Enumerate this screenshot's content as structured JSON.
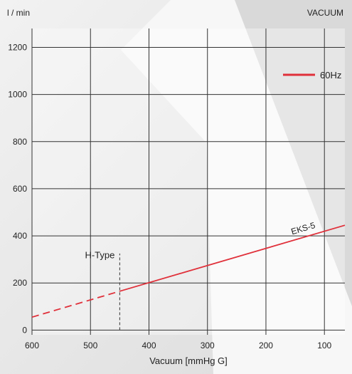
{
  "chart_data": {
    "type": "line",
    "title": "VACUUM",
    "xlabel": "Vacuum  [mmHg G]",
    "ylabel": "l / min",
    "x_ticks": [
      600,
      500,
      400,
      300,
      200,
      100
    ],
    "y_ticks": [
      0,
      200,
      400,
      600,
      800,
      1000,
      1200
    ],
    "xlim": [
      600,
      65
    ],
    "ylim": [
      -20,
      1280
    ],
    "x_reversed": true,
    "grid": true,
    "legend": {
      "position": "top-right",
      "entries": [
        {
          "label": "60Hz",
          "color": "#e0303a"
        }
      ]
    },
    "series": [
      {
        "name": "EKS-5",
        "color": "#e0303a",
        "solid": {
          "x": [
            450,
            65
          ],
          "y": [
            165,
            445
          ]
        },
        "dashed": {
          "x": [
            600,
            450
          ],
          "y": [
            55,
            165
          ]
        }
      }
    ],
    "annotations": [
      {
        "text": "H-Type",
        "x": 450,
        "y": 305
      },
      {
        "text": "EKS-5",
        "x": 135,
        "y": 420
      }
    ],
    "reference_lines": [
      {
        "x": 450,
        "y_from": 0,
        "y_to": 325,
        "style": "dashed"
      }
    ]
  }
}
